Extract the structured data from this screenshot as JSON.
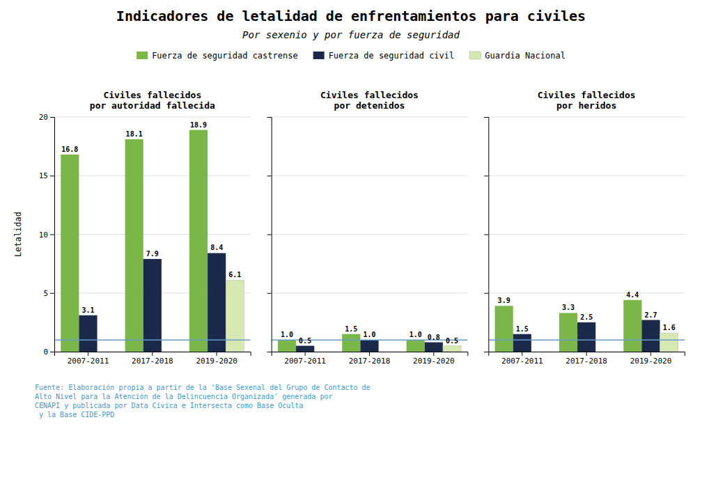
{
  "title": "Indicadores de letalidad de enfrentamientos para civiles",
  "subtitle": "Por sexenio y por fuerza de seguridad",
  "legend": "top",
  "annotations": [
    {
      "text": "Fuente: Elaboración propia a partir de la 'Base Sexenal del Grupo de Contacto de\nAlto Nivel para la Atención de la Delincuencia Organizada' generada por\nCENAPI y publicada por Data Cívica e Intersecta como Base Oculta\n y la Base CIDE-PPD",
      "color": "#4499cc"
    }
  ],
  "chart_data": [
    {
      "type": "bar",
      "title": "Civiles fallecidos\npor autoridad fallecida",
      "ylabel": "Letalidad",
      "categories": [
        "2007-2011",
        "2017-2018",
        "2019-2020"
      ],
      "series": [
        {
          "name": "Fuerza de seguridad castrense",
          "color": "#7ab648",
          "values": [
            16.8,
            18.1,
            18.9
          ],
          "value_labels": [
            "16.8",
            "18.1",
            "18.9"
          ]
        },
        {
          "name": "Fuerza de seguridad civil",
          "color": "#1b2a4a",
          "values": [
            3.1,
            7.9,
            8.4
          ],
          "value_labels": [
            "3.1",
            "7.9",
            "8.4"
          ]
        },
        {
          "name": "Guardia Nacional",
          "color": "#d4e8b0",
          "values": [
            null,
            null,
            6.1
          ],
          "value_labels": [
            null,
            null,
            "6.1"
          ]
        }
      ],
      "reference_line": {
        "value": 1.0,
        "color": "#6699cc"
      },
      "ylim": [
        0,
        20
      ],
      "yticks": [
        0,
        5,
        10,
        15,
        20
      ],
      "grid": true,
      "data_labels": true
    },
    {
      "type": "bar",
      "title": "Civiles fallecidos\npor detenidos",
      "categories": [
        "2007-2011",
        "2017-2018",
        "2019-2020"
      ],
      "series": [
        {
          "name": "Fuerza de seguridad castrense",
          "color": "#7ab648",
          "values": [
            1.0,
            1.5,
            1.0
          ],
          "value_labels": [
            "1.0",
            "1.5",
            "1.0"
          ]
        },
        {
          "name": "Fuerza de seguridad civil",
          "color": "#1b2a4a",
          "values": [
            0.5,
            1.0,
            0.8
          ],
          "value_labels": [
            "0.5",
            "1.0",
            "0.8"
          ]
        },
        {
          "name": "Guardia Nacional",
          "color": "#d4e8b0",
          "values": [
            null,
            null,
            0.5
          ],
          "value_labels": [
            null,
            null,
            "0.5"
          ]
        }
      ],
      "reference_line": {
        "value": 1.0,
        "color": "#6699cc"
      },
      "ylim": [
        0,
        20
      ],
      "yticks": [
        0,
        5,
        10,
        15,
        20
      ],
      "grid": true,
      "data_labels": true,
      "tick_labels": "x"
    },
    {
      "type": "bar",
      "title": "Civiles fallecidos\npor heridos",
      "categories": [
        "2007-2011",
        "2017-2018",
        "2019-2020"
      ],
      "series": [
        {
          "name": "Fuerza de seguridad castrense",
          "color": "#7ab648",
          "values": [
            3.9,
            3.3,
            4.4
          ],
          "value_labels": [
            "3.9",
            "3.3",
            "4.4"
          ]
        },
        {
          "name": "Fuerza de seguridad civil",
          "color": "#1b2a4a",
          "values": [
            1.5,
            2.5,
            2.7
          ],
          "value_labels": [
            "1.5",
            "2.5",
            "2.7"
          ]
        },
        {
          "name": "Guardia Nacional",
          "color": "#d4e8b0",
          "values": [
            null,
            null,
            1.6
          ],
          "value_labels": [
            null,
            null,
            "1.6"
          ]
        }
      ],
      "reference_line": {
        "value": 1.0,
        "color": "#6699cc"
      },
      "ylim": [
        0,
        20
      ],
      "yticks": [
        0,
        5,
        10,
        15,
        20
      ],
      "grid": true,
      "data_labels": true,
      "tick_labels": "x"
    }
  ]
}
